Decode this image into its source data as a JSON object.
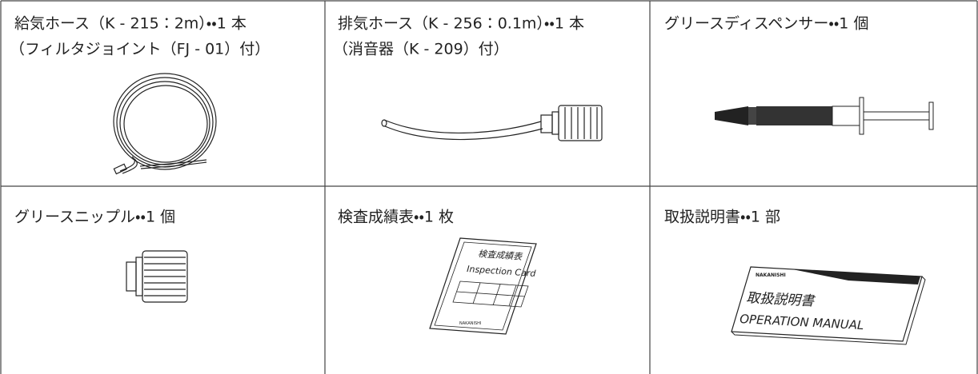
{
  "cells": [
    {
      "lines": [
        "給気ホース（K - 215：2m）・・1 本",
        "（フィルタジョイント（FJ - 01）付）"
      ]
    },
    {
      "lines": [
        "排気ホース（K - 256：0.1m）・・1 本",
        "（消音器（K - 209）付）"
      ]
    },
    {
      "lines": [
        "グリースディスペンサー・・1 個"
      ]
    },
    {
      "lines": [
        "グリースニップル・・1 個"
      ]
    },
    {
      "lines": [
        "検査成績表・・1 枚"
      ]
    },
    {
      "lines": [
        "取扱説明書・・1 部"
      ]
    }
  ],
  "figures": {
    "inspection_card": {
      "title": "検査成績表",
      "subtitle": "Inspection Card",
      "brand": "NAKANISHI"
    },
    "manual": {
      "title": "取扱説明書",
      "subtitle": "OPERATION MANUAL",
      "brand": "NAKANISHI"
    }
  }
}
